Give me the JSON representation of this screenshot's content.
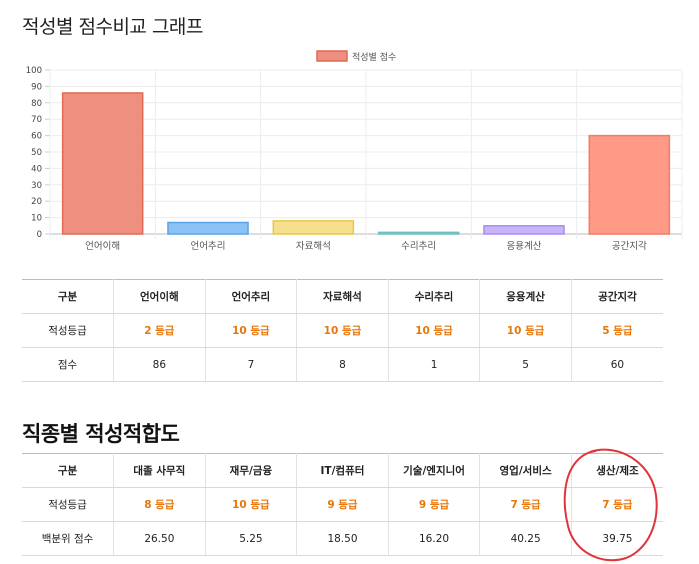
{
  "section1": {
    "title": "적성별 점수비교 그래프"
  },
  "chart_data": {
    "type": "bar",
    "legend": [
      "적성별 점수"
    ],
    "legend_position": "top-center",
    "categories": [
      "언어이해",
      "언어추리",
      "자료해석",
      "수리추리",
      "응용계산",
      "공간지각"
    ],
    "values": [
      86,
      7,
      8,
      1,
      5,
      60
    ],
    "ylim": [
      0,
      100
    ],
    "yticks": [
      0,
      10,
      20,
      30,
      40,
      50,
      60,
      70,
      80,
      90,
      100
    ],
    "bar_colors": [
      "#ef8f7f",
      "#8cc3f5",
      "#f6e08e",
      "#9fd7d6",
      "#c7b3f7",
      "#ff9a86"
    ],
    "bar_borders": [
      "#e06a55",
      "#5aa3e8",
      "#e6c84c",
      "#6fbfbf",
      "#a98cf0",
      "#f47a63"
    ],
    "grid": true
  },
  "table1": {
    "headers": [
      "구분",
      "언어이해",
      "언어추리",
      "자료해석",
      "수리추리",
      "응용계산",
      "공간지각"
    ],
    "grade_label": "적성등급",
    "grades": [
      "2 등급",
      "10 등급",
      "10 등급",
      "10 등급",
      "10 등급",
      "5 등급"
    ],
    "score_label": "점수",
    "scores": [
      "86",
      "7",
      "8",
      "1",
      "5",
      "60"
    ]
  },
  "section2": {
    "title": "직종별 적성적합도"
  },
  "table2": {
    "headers": [
      "구분",
      "대졸 사무직",
      "재무/금융",
      "IT/컴퓨터",
      "기술/엔지니어",
      "영업/서비스",
      "생산/제조"
    ],
    "grade_label": "적성등급",
    "grades": [
      "8 등급",
      "10 등급",
      "9 등급",
      "9 등급",
      "7 등급",
      "7 등급"
    ],
    "score_label": "백분위 점수",
    "scores": [
      "26.50",
      "5.25",
      "18.50",
      "16.20",
      "40.25",
      "39.75"
    ]
  },
  "colors": {
    "grade_text": "#e8760a",
    "highlight_circle": "#e0343a"
  }
}
